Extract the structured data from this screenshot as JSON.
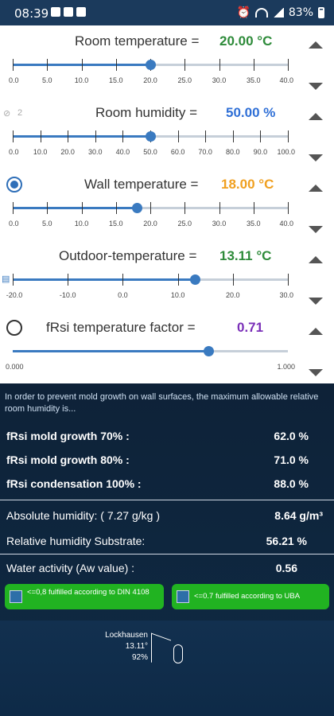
{
  "status": {
    "time": "08:39",
    "battery": "83%"
  },
  "rows": [
    {
      "label": "Room temperature =",
      "value": "20.00 °C",
      "value_color": "#2e8b3a",
      "min": 0,
      "max": 40,
      "current": 20.0,
      "ticks": [
        "0.0",
        "5.0",
        "10.0",
        "15.0",
        "20.0",
        "25.0",
        "30.0",
        "35.0",
        "40.0"
      ]
    },
    {
      "label": "Room humidity =",
      "value": "50.00 %",
      "value_color": "#2f6fd6",
      "min": 0,
      "max": 100,
      "current": 50.0,
      "link_hint": "2",
      "ticks": [
        "0.0",
        "10.0",
        "20.0",
        "30.0",
        "40.0",
        "50.0",
        "60.0",
        "70.0",
        "80.0",
        "90.0",
        "100.0"
      ]
    },
    {
      "label": "Wall temperature =",
      "value": "18.00 °C",
      "value_color": "#f0a020",
      "min": 0,
      "max": 40,
      "current": 18.0,
      "radio": true,
      "radio_selected": true,
      "ticks": [
        "0.0",
        "5.0",
        "10.0",
        "15.0",
        "20.0",
        "25.0",
        "30.0",
        "35.0",
        "40.0"
      ]
    },
    {
      "label": "Outdoor-temperature =",
      "value": "13.11 °C",
      "value_color": "#2e8b3a",
      "min": -20,
      "max": 30,
      "current": 13.11,
      "ticks": [
        "-20.0",
        "-10.0",
        "0.0",
        "10.0",
        "20.0",
        "30.0"
      ]
    },
    {
      "label": "fRsi temperature factor =",
      "value": "0.71",
      "value_color": "#7a2fb8",
      "min": 0,
      "max": 1,
      "current": 0.71,
      "radio": true,
      "radio_selected": false,
      "ticks": [
        "0.000",
        "1.000"
      ]
    }
  ],
  "results": {
    "intro": "In order to prevent mold growth on wall surfaces, the maximum allowable relative room humidity is...",
    "mold70": {
      "label": "fRsi mold growth 70% :",
      "value": "62.0 %"
    },
    "mold80": {
      "label": "fRsi mold growth 80% :",
      "value": "71.0 %"
    },
    "cond100": {
      "label": "fRsi condensation 100% :",
      "value": "88.0 %"
    },
    "abs": {
      "label": "Absolute humidity:  ( 7.27 g/kg )",
      "value": "8.64  g/m³"
    },
    "relsub": {
      "label": "Relative humidity Substrate:",
      "value": "56.21 %"
    },
    "aw": {
      "label": "Water activity (Aw value) :",
      "value": "0.56"
    },
    "btn1": "<=0,8 fulfilled according to DIN 4108",
    "btn2": "<=0.7 fulfilled according to UBA"
  },
  "weather": {
    "station": "Lockhausen",
    "temp": "13.11°",
    "humidity": "92%"
  }
}
